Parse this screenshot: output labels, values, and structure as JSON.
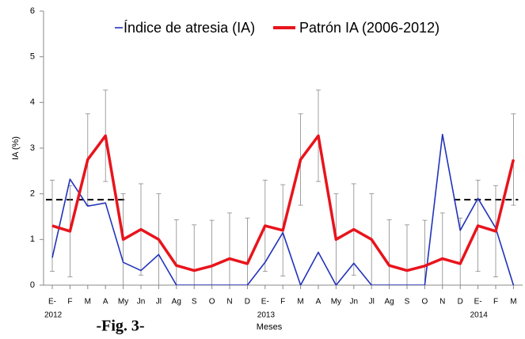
{
  "chart_data": {
    "type": "line",
    "y_label": "IA (%)",
    "x_label": "Meses",
    "caption": "-Fig. 3-",
    "categories": [
      "E-",
      "F",
      "M",
      "A",
      "My",
      "Jn",
      "Jl",
      "Ag",
      "S",
      "O",
      "N",
      "D",
      "E-",
      "F",
      "M",
      "A",
      "My",
      "Jn",
      "Jl",
      "Ag",
      "S",
      "O",
      "N",
      "D",
      "E-",
      "F",
      "M"
    ],
    "year_labels": [
      {
        "text": "2012",
        "index": 0
      },
      {
        "text": "2013",
        "index": 12
      },
      {
        "text": "2014",
        "index": 24
      }
    ],
    "series": [
      {
        "name": "Índice de atresia (IA)",
        "color": "#2233bb",
        "values": [
          0.6,
          2.32,
          1.73,
          1.8,
          0.5,
          0.32,
          0.67,
          0,
          0,
          0,
          0,
          0,
          0.5,
          1.15,
          0,
          0.72,
          0,
          0.48,
          0,
          0,
          0,
          0,
          3.3,
          1.2,
          1.9,
          1.25,
          0
        ]
      },
      {
        "name": "Patrón IA (2006-2012)",
        "color": "#e8141c",
        "values": [
          1.3,
          1.18,
          2.75,
          3.27,
          1.0,
          1.22,
          1.0,
          0.43,
          0.32,
          0.42,
          0.58,
          0.47,
          1.3,
          1.2,
          2.75,
          3.27,
          1.0,
          1.22,
          1.0,
          0.43,
          0.32,
          0.42,
          0.58,
          0.47,
          1.3,
          1.18,
          2.75
        ],
        "errors": [
          1,
          1,
          1,
          1,
          1,
          1,
          1,
          1,
          1,
          1,
          1,
          1,
          1,
          1,
          1,
          1,
          1,
          1,
          1,
          1,
          1,
          1,
          1,
          1,
          1,
          1,
          1
        ]
      }
    ],
    "reference_lines": [
      {
        "value": 1.87,
        "start_index": 0,
        "end_index": 4
      },
      {
        "value": 1.87,
        "start_index": 23,
        "end_index": 26
      }
    ],
    "ylim": [
      0,
      6
    ],
    "yticks": [
      0,
      1,
      2,
      3,
      4,
      5,
      6
    ]
  }
}
